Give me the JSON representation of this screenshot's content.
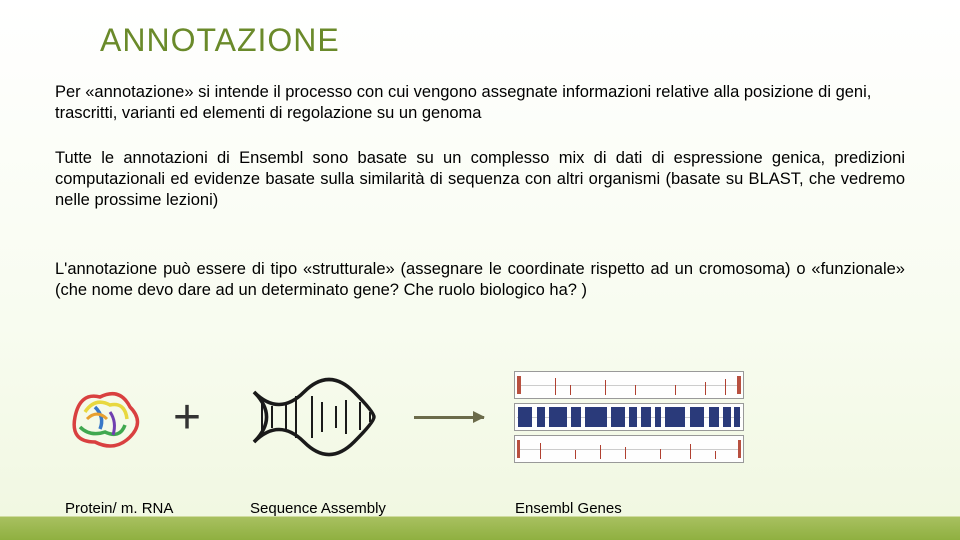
{
  "title": "ANNOTAZIONE",
  "title_color": "#6a8a2a",
  "paragraphs": {
    "p1": "Per «annotazione» si intende il processo con cui vengono assegnate informazioni relative alla posizione di geni, trascritti, varianti ed elementi di regolazione su un genoma",
    "p2": "Tutte le annotazioni di Ensembl sono basate su un complesso mix di dati di espressione genica, predizioni computazionali ed evidenze basate sulla similarità di sequenza con altri organismi (basate su BLAST, che vedremo nelle prossime lezioni)",
    "p3": "L'annotazione può essere di tipo «strutturale» (assegnare le coordinate rispetto ad un cromosoma) o «funzionale» (che nome devo dare ad un determinato gene? Che ruolo biologico ha? )"
  },
  "diagram": {
    "plus_symbol": "+",
    "label_protein": "Protein/ m. RNA",
    "label_assembly": "Sequence Assembly",
    "label_genes": "Ensembl Genes",
    "protein_colors": [
      "#d94040",
      "#e8a030",
      "#e8d840",
      "#40a850",
      "#3878c8",
      "#7040b0"
    ],
    "dna_color": "#1a1a1a",
    "arrow_color": "#6b6b4a",
    "tracks": {
      "border_color": "#999999",
      "bg": "#fefefe",
      "track1": {
        "red_edges": [
          {
            "l": 2,
            "w": 4
          },
          {
            "l": 222,
            "w": 4
          }
        ],
        "spikes": [
          40,
          55,
          90,
          120,
          160,
          190,
          210
        ]
      },
      "track2": {
        "blue_bands": [
          {
            "l": 3,
            "w": 14
          },
          {
            "l": 22,
            "w": 8
          },
          {
            "l": 34,
            "w": 18
          },
          {
            "l": 56,
            "w": 10
          },
          {
            "l": 70,
            "w": 22
          },
          {
            "l": 96,
            "w": 14
          },
          {
            "l": 114,
            "w": 8
          },
          {
            "l": 126,
            "w": 10
          },
          {
            "l": 140,
            "w": 6
          },
          {
            "l": 150,
            "w": 20
          },
          {
            "l": 175,
            "w": 14
          },
          {
            "l": 194,
            "w": 10
          },
          {
            "l": 208,
            "w": 8
          },
          {
            "l": 219,
            "w": 6
          }
        ]
      },
      "track3": {
        "red_edges": [
          {
            "l": 2,
            "w": 3
          },
          {
            "l": 223,
            "w": 3
          }
        ],
        "spikes": [
          25,
          60,
          85,
          110,
          145,
          175,
          200
        ]
      }
    }
  },
  "text_color": "#000000",
  "background": {
    "top": "#ffffff",
    "bottom": "#f0f7e0"
  },
  "footer": {
    "top": "#a8c060",
    "bottom": "#8fb040"
  },
  "body_fontsize": 16.5,
  "title_fontsize": 32,
  "label_fontsize": 15
}
